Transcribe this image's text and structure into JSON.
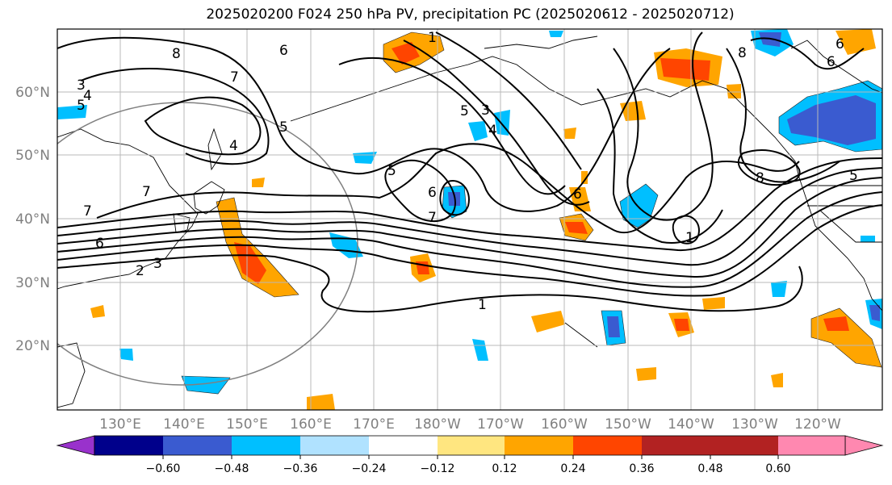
{
  "title": "2025020200 F024 250 hPa PV, precipitation PC (2025020612 - 2025020712)",
  "lat_labels": [
    "60°N",
    "50°N",
    "40°N",
    "30°N",
    "20°N"
  ],
  "lon_labels": [
    "130°E",
    "140°E",
    "150°E",
    "160°E",
    "170°E",
    "180°W",
    "170°W",
    "160°W",
    "150°W",
    "140°W",
    "130°W",
    "120°W"
  ],
  "contour_labels": [
    "8",
    "6",
    "7",
    "3",
    "4",
    "5",
    "4",
    "5",
    "7",
    "7",
    "6",
    "2",
    "3",
    "1",
    "5",
    "6",
    "7",
    "3",
    "5",
    "4",
    "1",
    "6",
    "8",
    "8",
    "6",
    "6",
    "5",
    "1"
  ],
  "colorbar": {
    "ticks": [
      "−0.60",
      "−0.48",
      "−0.36",
      "−0.24",
      "−0.12",
      "0.12",
      "0.24",
      "0.36",
      "0.48",
      "0.60"
    ],
    "colors": [
      "#9932cc",
      "#00008b",
      "#3a5bd0",
      "#00bfff",
      "#b0e2ff",
      "#ffffff",
      "#ffe680",
      "#ffa500",
      "#ff4500",
      "#b22222",
      "#ff88b0"
    ]
  }
}
